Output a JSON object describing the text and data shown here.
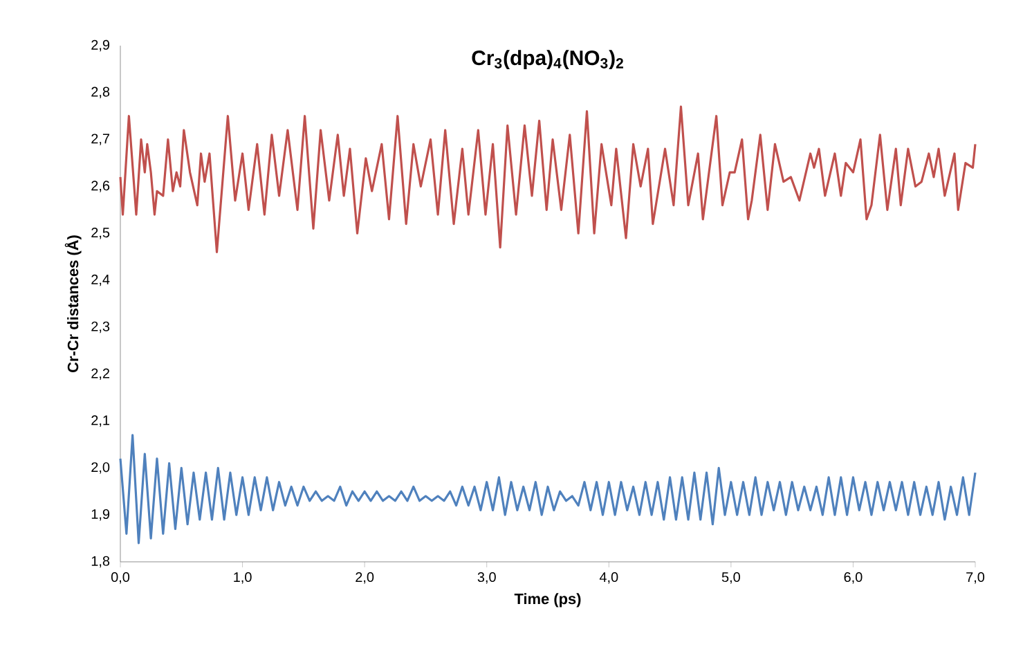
{
  "chart_data": {
    "type": "line",
    "title": "Cr$_{3}$(dpa)$_{4}$(NO$_{3}$)$_{2}$",
    "xlabel": "Time (ps)",
    "ylabel": "Cr-Cr distances (Å)",
    "xlim": [
      0,
      7
    ],
    "ylim": [
      1.8,
      2.9
    ],
    "xticks": [
      {
        "value": 0,
        "label": "0,0"
      },
      {
        "value": 1,
        "label": "1,0"
      },
      {
        "value": 2,
        "label": "2,0"
      },
      {
        "value": 3,
        "label": "3,0"
      },
      {
        "value": 4,
        "label": "4,0"
      },
      {
        "value": 5,
        "label": "5,0"
      },
      {
        "value": 6,
        "label": "6,0"
      },
      {
        "value": 7,
        "label": "7,0"
      }
    ],
    "yticks": [
      {
        "value": 1.8,
        "label": "1,8"
      },
      {
        "value": 1.9,
        "label": "1,9"
      },
      {
        "value": 2.0,
        "label": "2,0"
      },
      {
        "value": 2.1,
        "label": "2,1"
      },
      {
        "value": 2.2,
        "label": "2,2"
      },
      {
        "value": 2.3,
        "label": "2,3"
      },
      {
        "value": 2.4,
        "label": "2,4"
      },
      {
        "value": 2.5,
        "label": "2,5"
      },
      {
        "value": 2.6,
        "label": "2,6"
      },
      {
        "value": 2.7,
        "label": "2,7"
      },
      {
        "value": 2.8,
        "label": "2,8"
      },
      {
        "value": 2.9,
        "label": "2,9"
      }
    ],
    "grid": false,
    "marker": "none",
    "line_style": "solid",
    "series": [
      {
        "color": "#c0504d",
        "x": [
          0.0,
          0.02,
          0.07,
          0.13,
          0.17,
          0.2,
          0.22,
          0.25,
          0.28,
          0.3,
          0.35,
          0.39,
          0.43,
          0.46,
          0.49,
          0.52,
          0.57,
          0.63,
          0.66,
          0.69,
          0.73,
          0.79,
          0.88,
          0.94,
          1.0,
          1.05,
          1.12,
          1.18,
          1.24,
          1.3,
          1.37,
          1.45,
          1.51,
          1.58,
          1.64,
          1.71,
          1.78,
          1.83,
          1.88,
          1.94,
          2.01,
          2.06,
          2.14,
          2.2,
          2.27,
          2.34,
          2.4,
          2.46,
          2.54,
          2.6,
          2.66,
          2.73,
          2.8,
          2.85,
          2.93,
          2.99,
          3.05,
          3.11,
          3.17,
          3.24,
          3.31,
          3.37,
          3.43,
          3.49,
          3.54,
          3.61,
          3.68,
          3.75,
          3.82,
          3.88,
          3.94,
          4.02,
          4.06,
          4.14,
          4.2,
          4.26,
          4.32,
          4.36,
          4.46,
          4.53,
          4.59,
          4.65,
          4.73,
          4.77,
          4.88,
          4.93,
          4.99,
          5.03,
          5.09,
          5.14,
          5.17,
          5.24,
          5.3,
          5.36,
          5.43,
          5.49,
          5.56,
          5.65,
          5.68,
          5.72,
          5.77,
          5.85,
          5.9,
          5.94,
          6.0,
          6.06,
          6.11,
          6.15,
          6.22,
          6.28,
          6.35,
          6.39,
          6.45,
          6.51,
          6.56,
          6.62,
          6.66,
          6.7,
          6.75,
          6.83,
          6.86,
          6.92,
          6.98,
          7.0
        ],
        "values": [
          2.62,
          2.54,
          2.75,
          2.54,
          2.7,
          2.63,
          2.69,
          2.63,
          2.54,
          2.59,
          2.58,
          2.7,
          2.59,
          2.63,
          2.6,
          2.72,
          2.63,
          2.56,
          2.67,
          2.61,
          2.67,
          2.46,
          2.75,
          2.57,
          2.67,
          2.55,
          2.69,
          2.54,
          2.71,
          2.58,
          2.72,
          2.55,
          2.75,
          2.51,
          2.72,
          2.57,
          2.71,
          2.58,
          2.68,
          2.5,
          2.66,
          2.59,
          2.69,
          2.53,
          2.75,
          2.52,
          2.69,
          2.6,
          2.7,
          2.54,
          2.72,
          2.52,
          2.68,
          2.54,
          2.72,
          2.54,
          2.69,
          2.47,
          2.73,
          2.54,
          2.73,
          2.58,
          2.74,
          2.55,
          2.7,
          2.55,
          2.71,
          2.5,
          2.76,
          2.5,
          2.69,
          2.56,
          2.68,
          2.49,
          2.69,
          2.6,
          2.68,
          2.52,
          2.68,
          2.56,
          2.77,
          2.56,
          2.67,
          2.53,
          2.75,
          2.56,
          2.63,
          2.63,
          2.7,
          2.53,
          2.57,
          2.71,
          2.55,
          2.69,
          2.61,
          2.62,
          2.57,
          2.67,
          2.64,
          2.68,
          2.58,
          2.67,
          2.58,
          2.65,
          2.63,
          2.7,
          2.53,
          2.56,
          2.71,
          2.55,
          2.68,
          2.56,
          2.68,
          2.6,
          2.61,
          2.67,
          2.62,
          2.68,
          2.58,
          2.67,
          2.55,
          2.65,
          2.64,
          2.69
        ]
      },
      {
        "color": "#4f81bd",
        "x": [
          0.0,
          0.05,
          0.1,
          0.15,
          0.2,
          0.25,
          0.3,
          0.35,
          0.4,
          0.45,
          0.5,
          0.55,
          0.6,
          0.65,
          0.7,
          0.75,
          0.8,
          0.85,
          0.9,
          0.95,
          1.0,
          1.05,
          1.1,
          1.15,
          1.2,
          1.25,
          1.3,
          1.35,
          1.4,
          1.45,
          1.5,
          1.55,
          1.6,
          1.65,
          1.7,
          1.75,
          1.8,
          1.85,
          1.9,
          1.95,
          2.0,
          2.05,
          2.1,
          2.15,
          2.2,
          2.25,
          2.3,
          2.35,
          2.4,
          2.45,
          2.5,
          2.55,
          2.6,
          2.65,
          2.7,
          2.75,
          2.8,
          2.85,
          2.9,
          2.95,
          3.0,
          3.05,
          3.1,
          3.15,
          3.2,
          3.25,
          3.3,
          3.35,
          3.4,
          3.45,
          3.5,
          3.55,
          3.6,
          3.65,
          3.7,
          3.75,
          3.8,
          3.85,
          3.9,
          3.95,
          4.0,
          4.05,
          4.1,
          4.15,
          4.2,
          4.25,
          4.3,
          4.35,
          4.4,
          4.45,
          4.5,
          4.55,
          4.6,
          4.65,
          4.7,
          4.75,
          4.8,
          4.85,
          4.9,
          4.95,
          5.0,
          5.05,
          5.1,
          5.15,
          5.2,
          5.25,
          5.3,
          5.35,
          5.4,
          5.45,
          5.5,
          5.55,
          5.6,
          5.65,
          5.7,
          5.75,
          5.8,
          5.85,
          5.9,
          5.95,
          6.0,
          6.05,
          6.1,
          6.15,
          6.2,
          6.25,
          6.3,
          6.35,
          6.4,
          6.45,
          6.5,
          6.55,
          6.6,
          6.65,
          6.7,
          6.75,
          6.8,
          6.85,
          6.9,
          6.95,
          7.0
        ],
        "values": [
          2.02,
          1.86,
          2.07,
          1.84,
          2.03,
          1.85,
          2.02,
          1.86,
          2.01,
          1.87,
          2.0,
          1.88,
          1.99,
          1.89,
          1.99,
          1.89,
          2.0,
          1.89,
          1.99,
          1.9,
          1.98,
          1.9,
          1.98,
          1.91,
          1.98,
          1.91,
          1.97,
          1.92,
          1.96,
          1.92,
          1.96,
          1.93,
          1.95,
          1.93,
          1.94,
          1.93,
          1.96,
          1.92,
          1.95,
          1.93,
          1.95,
          1.93,
          1.95,
          1.93,
          1.94,
          1.93,
          1.95,
          1.93,
          1.96,
          1.93,
          1.94,
          1.93,
          1.94,
          1.93,
          1.95,
          1.92,
          1.96,
          1.92,
          1.96,
          1.91,
          1.97,
          1.91,
          1.98,
          1.9,
          1.97,
          1.91,
          1.96,
          1.91,
          1.97,
          1.9,
          1.96,
          1.91,
          1.95,
          1.93,
          1.94,
          1.92,
          1.97,
          1.91,
          1.97,
          1.9,
          1.97,
          1.9,
          1.97,
          1.91,
          1.96,
          1.9,
          1.97,
          1.9,
          1.97,
          1.89,
          1.98,
          1.89,
          1.98,
          1.89,
          1.99,
          1.89,
          1.99,
          1.88,
          2.0,
          1.9,
          1.97,
          1.9,
          1.97,
          1.9,
          1.98,
          1.9,
          1.97,
          1.91,
          1.97,
          1.9,
          1.97,
          1.91,
          1.96,
          1.91,
          1.96,
          1.9,
          1.98,
          1.9,
          1.98,
          1.9,
          1.98,
          1.91,
          1.97,
          1.9,
          1.97,
          1.91,
          1.97,
          1.91,
          1.97,
          1.9,
          1.97,
          1.9,
          1.96,
          1.9,
          1.97,
          1.89,
          1.96,
          1.9,
          1.98,
          1.9,
          1.99
        ]
      }
    ]
  }
}
